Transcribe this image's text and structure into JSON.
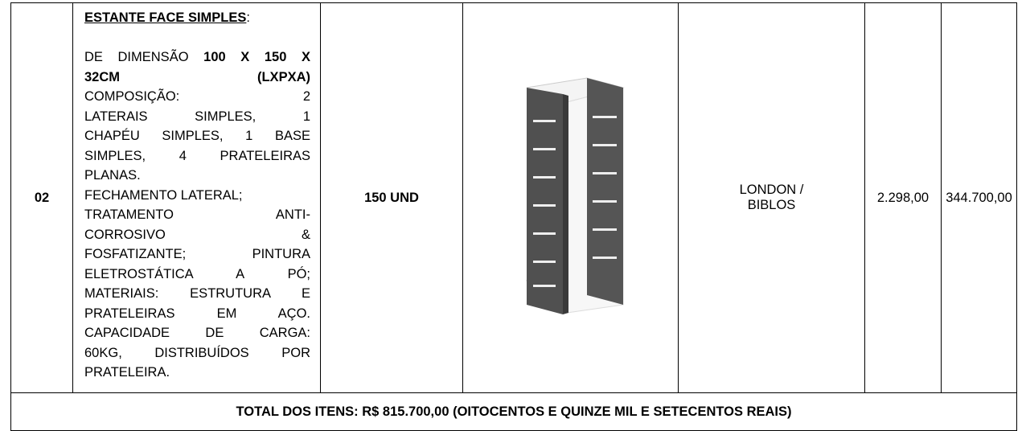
{
  "table": {
    "item": "02",
    "description": {
      "title": "ESTANTE FACE SIMPLES",
      "title_suffix": ":",
      "lines": [
        {
          "segments": [
            {
              "text": "DE DIMENSÃO ",
              "bold": false
            },
            {
              "text": "100 X 150 X",
              "bold": true
            }
          ],
          "justify": true
        },
        {
          "segments": [
            {
              "text": "32CM (LXPXA)",
              "bold": true
            }
          ],
          "justify": true
        },
        {
          "segments": [
            {
              "text": "COMPOSIÇÃO: 2",
              "bold": false
            }
          ],
          "justify": true
        },
        {
          "segments": [
            {
              "text": "LATERAIS SIMPLES, 1",
              "bold": false
            }
          ],
          "justify": true
        },
        {
          "segments": [
            {
              "text": "CHAPÉU SIMPLES, 1 BASE",
              "bold": false
            }
          ],
          "justify": true
        },
        {
          "segments": [
            {
              "text": "SIMPLES, 4 PRATELEIRAS",
              "bold": false
            }
          ],
          "justify": true
        },
        {
          "segments": [
            {
              "text": "PLANAS.",
              "bold": false
            }
          ],
          "justify": false
        },
        {
          "segments": [
            {
              "text": "FECHAMENTO LATERAL;",
              "bold": false
            }
          ],
          "justify": false
        },
        {
          "segments": [
            {
              "text": "TRATAMENTO ANTI-",
              "bold": false
            }
          ],
          "justify": true
        },
        {
          "segments": [
            {
              "text": "CORROSIVO &",
              "bold": false
            }
          ],
          "justify": true
        },
        {
          "segments": [
            {
              "text": "FOSFATIZANTE; PINTURA",
              "bold": false
            }
          ],
          "justify": true
        },
        {
          "segments": [
            {
              "text": "ELETROSTÁTICA A PÓ;",
              "bold": false
            }
          ],
          "justify": true
        },
        {
          "segments": [
            {
              "text": "MATERIAIS: ESTRUTURA E",
              "bold": false
            }
          ],
          "justify": true
        },
        {
          "segments": [
            {
              "text": "PRATELEIRAS EM AÇO.",
              "bold": false
            }
          ],
          "justify": true
        },
        {
          "segments": [
            {
              "text": "CAPACIDADE DE CARGA:",
              "bold": false
            }
          ],
          "justify": true
        },
        {
          "segments": [
            {
              "text": "60KG, DISTRIBUÍDOS POR",
              "bold": false
            }
          ],
          "justify": true
        },
        {
          "segments": [
            {
              "text": "PRATELEIRA.",
              "bold": false
            }
          ],
          "justify": false
        }
      ]
    },
    "quantity": "150 UND",
    "brand": "LONDON / BIBLOS",
    "unit_price": "2.298,00",
    "total_price": "344.700,00",
    "total_row": "TOTAL DOS ITENS: R$ 815.700,00 (OITOCENTOS E QUINZE MIL E SETECENTOS REAIS)"
  }
}
